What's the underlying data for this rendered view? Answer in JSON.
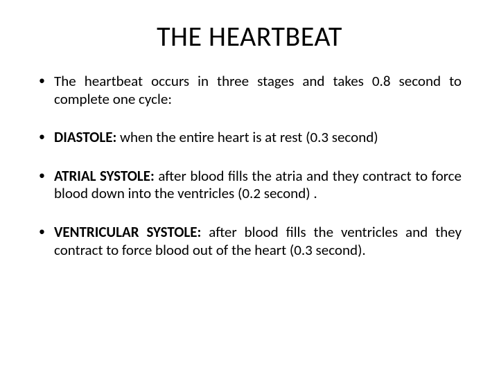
{
  "slide": {
    "background_color": "#ffffff",
    "text_color": "#000000",
    "title": "THE HEARTBEAT",
    "title_fontsize": 40,
    "body_fontsize": 21,
    "bullets": [
      {
        "term": "",
        "text": "The heartbeat occurs in three stages and takes 0.8 second to complete one cycle:"
      },
      {
        "term": "DIASTOLE:",
        "text": " when the entire heart is at rest (0.3 second)"
      },
      {
        "term": "ATRIAL SYSTOLE:",
        "text": " after blood fills the atria and they contract to force blood down into the ventricles (0.2 second) ."
      },
      {
        "term": "VENTRICULAR SYSTOLE:",
        "text": " after blood fills the ventricles and they contract to force blood out of the heart (0.3 second)."
      }
    ]
  }
}
